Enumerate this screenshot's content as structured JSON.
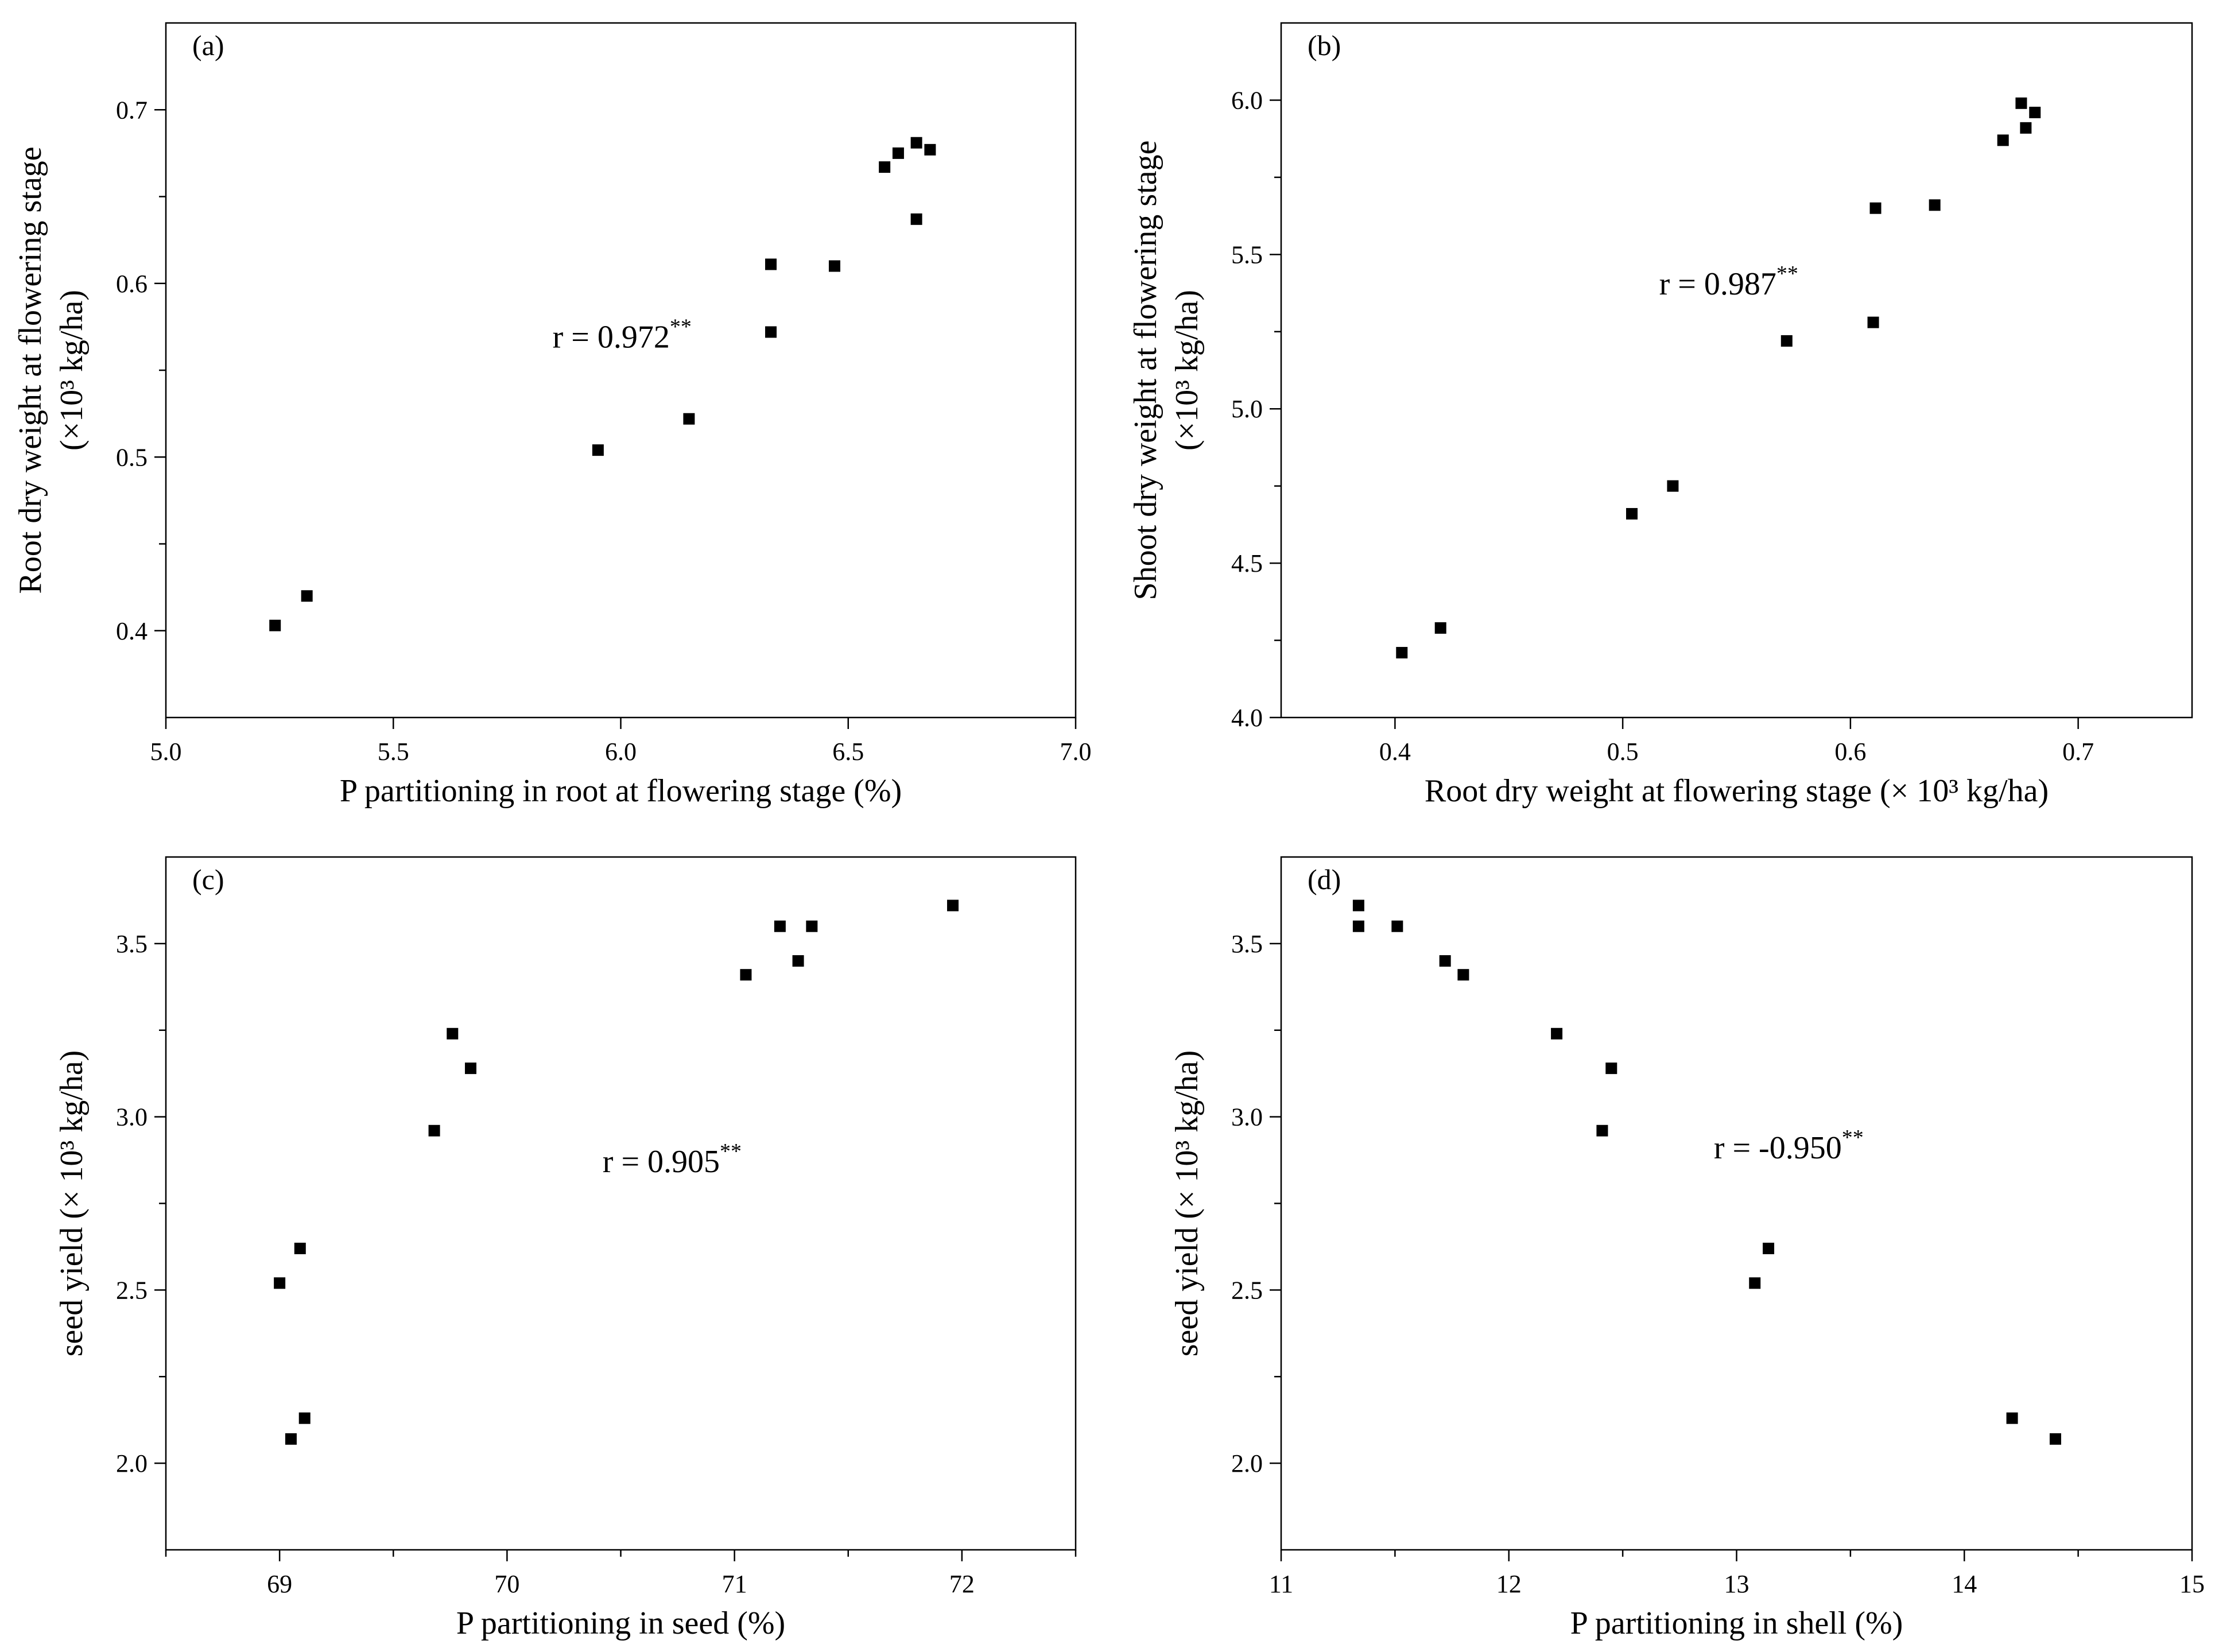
{
  "chart_data": [
    {
      "type": "scatter",
      "panel_label": "(a)",
      "xlabel": "P partitioning in root at flowering stage (%)",
      "ylabel_line1": "Root dry weight at flowering stage",
      "ylabel_line2": "(×10³ kg/ha)",
      "xlim": [
        5.0,
        7.0
      ],
      "ylim": [
        0.35,
        0.75
      ],
      "xticks": [
        5.0,
        5.5,
        6.0,
        6.5,
        7.0
      ],
      "xtick_labels": [
        "5.0",
        "5.5",
        "6.0",
        "6.5",
        "7.0"
      ],
      "xticks_minor": [],
      "yticks": [
        0.4,
        0.5,
        0.6,
        0.7
      ],
      "ytick_labels": [
        "0.4",
        "0.5",
        "0.6",
        "0.7"
      ],
      "annotation": "r = 0.972",
      "annotation_sup": "**",
      "annotation_pos": [
        5.85,
        0.563
      ],
      "points": [
        {
          "x": 5.24,
          "y": 0.403
        },
        {
          "x": 5.31,
          "y": 0.42
        },
        {
          "x": 5.95,
          "y": 0.504
        },
        {
          "x": 6.15,
          "y": 0.522
        },
        {
          "x": 6.33,
          "y": 0.611
        },
        {
          "x": 6.33,
          "y": 0.572
        },
        {
          "x": 6.47,
          "y": 0.61
        },
        {
          "x": 6.58,
          "y": 0.667
        },
        {
          "x": 6.61,
          "y": 0.675
        },
        {
          "x": 6.65,
          "y": 0.681
        },
        {
          "x": 6.68,
          "y": 0.677
        },
        {
          "x": 6.65,
          "y": 0.637
        }
      ]
    },
    {
      "type": "scatter",
      "panel_label": "(b)",
      "xlabel": "Root dry weight at flowering stage (× 10³ kg/ha)",
      "ylabel_line1": "Shoot dry weight at flowering stage",
      "ylabel_line2": "(×10³ kg/ha)",
      "xlim": [
        0.35,
        0.75
      ],
      "ylim": [
        4.0,
        6.25
      ],
      "xticks": [
        0.4,
        0.5,
        0.6,
        0.7
      ],
      "xtick_labels": [
        "0.4",
        "0.5",
        "0.6",
        "0.7"
      ],
      "xticks_minor": [],
      "yticks": [
        4.0,
        4.5,
        5.0,
        5.5,
        6.0
      ],
      "ytick_labels": [
        "4.0",
        "4.5",
        "5.0",
        "5.5",
        "6.0"
      ],
      "annotation": "r = 0.987",
      "annotation_sup": "**",
      "annotation_pos": [
        0.516,
        5.37
      ],
      "points": [
        {
          "x": 0.403,
          "y": 4.21
        },
        {
          "x": 0.42,
          "y": 4.29
        },
        {
          "x": 0.504,
          "y": 4.66
        },
        {
          "x": 0.522,
          "y": 4.75
        },
        {
          "x": 0.572,
          "y": 5.22
        },
        {
          "x": 0.61,
          "y": 5.28
        },
        {
          "x": 0.611,
          "y": 5.65
        },
        {
          "x": 0.637,
          "y": 5.66
        },
        {
          "x": 0.667,
          "y": 5.87
        },
        {
          "x": 0.675,
          "y": 5.99
        },
        {
          "x": 0.677,
          "y": 5.91
        },
        {
          "x": 0.681,
          "y": 5.96
        }
      ]
    },
    {
      "type": "scatter",
      "panel_label": "(c)",
      "xlabel": "P partitioning in seed (%)",
      "ylabel_line1": "seed yield (× 10³ kg/ha)",
      "ylabel_line2": "",
      "xlim": [
        68.5,
        72.5
      ],
      "ylim": [
        1.75,
        3.75
      ],
      "xticks": [
        69,
        70,
        71,
        72
      ],
      "xtick_labels": [
        "69",
        "70",
        "71",
        "72"
      ],
      "xticks_minor": [
        68.5,
        69.5,
        70.5,
        71.5,
        72.5
      ],
      "yticks": [
        2.0,
        2.5,
        3.0,
        3.5
      ],
      "ytick_labels": [
        "2.0",
        "2.5",
        "3.0",
        "3.5"
      ],
      "annotation": "r = 0.905",
      "annotation_sup": "**",
      "annotation_pos": [
        70.42,
        2.84
      ],
      "points": [
        {
          "x": 69.0,
          "y": 2.52
        },
        {
          "x": 69.09,
          "y": 2.62
        },
        {
          "x": 69.05,
          "y": 2.07
        },
        {
          "x": 69.11,
          "y": 2.13
        },
        {
          "x": 69.68,
          "y": 2.96
        },
        {
          "x": 69.76,
          "y": 3.24
        },
        {
          "x": 69.84,
          "y": 3.14
        },
        {
          "x": 71.05,
          "y": 3.41
        },
        {
          "x": 71.2,
          "y": 3.55
        },
        {
          "x": 71.28,
          "y": 3.45
        },
        {
          "x": 71.34,
          "y": 3.55
        },
        {
          "x": 71.96,
          "y": 3.61
        }
      ]
    },
    {
      "type": "scatter",
      "panel_label": "(d)",
      "xlabel": "P partitioning in shell (%)",
      "ylabel_line1": "seed yield (× 10³ kg/ha)",
      "ylabel_line2": "",
      "xlim": [
        11,
        15
      ],
      "ylim": [
        1.75,
        3.75
      ],
      "xticks": [
        11,
        12,
        13,
        14,
        15
      ],
      "xtick_labels": [
        "11",
        "12",
        "13",
        "14",
        "15"
      ],
      "xticks_minor": [
        11.5,
        12.5,
        13.5,
        14.5
      ],
      "yticks": [
        2.0,
        2.5,
        3.0,
        3.5
      ],
      "ytick_labels": [
        "2.0",
        "2.5",
        "3.0",
        "3.5"
      ],
      "annotation": "r = -0.950",
      "annotation_sup": "**",
      "annotation_pos": [
        12.9,
        2.88
      ],
      "points": [
        {
          "x": 11.34,
          "y": 3.61
        },
        {
          "x": 11.34,
          "y": 3.55
        },
        {
          "x": 11.51,
          "y": 3.55
        },
        {
          "x": 11.72,
          "y": 3.45
        },
        {
          "x": 11.8,
          "y": 3.41
        },
        {
          "x": 12.21,
          "y": 3.24
        },
        {
          "x": 12.45,
          "y": 3.14
        },
        {
          "x": 12.41,
          "y": 2.96
        },
        {
          "x": 13.08,
          "y": 2.52
        },
        {
          "x": 13.14,
          "y": 2.62
        },
        {
          "x": 14.21,
          "y": 2.13
        },
        {
          "x": 14.4,
          "y": 2.07
        }
      ]
    }
  ]
}
